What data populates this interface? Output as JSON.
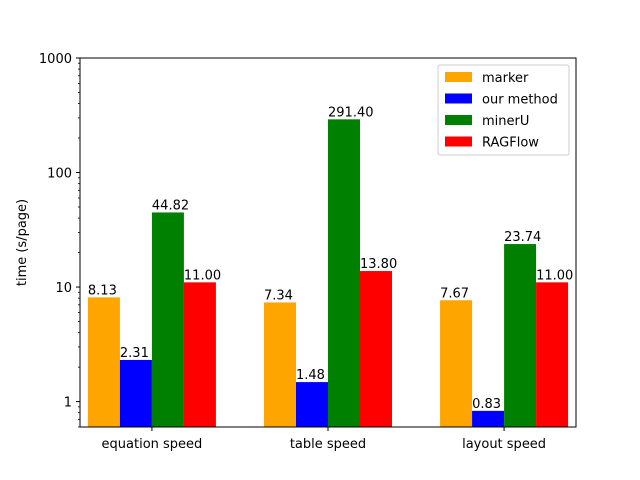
{
  "chart_data": {
    "type": "bar",
    "title": "",
    "xlabel": "",
    "ylabel": "time (s/page)",
    "yscale": "log",
    "ylim": [
      0.6,
      1000
    ],
    "yticks": [
      1,
      10,
      100,
      1000
    ],
    "ytick_labels": [
      "1",
      "10",
      "100",
      "1000"
    ],
    "categories": [
      "equation speed",
      "table speed",
      "layout speed"
    ],
    "series": [
      {
        "name": "marker",
        "color": "#ffa500",
        "values": [
          8.13,
          7.34,
          7.67
        ],
        "labels": [
          "8.13",
          "7.34",
          "7.67"
        ]
      },
      {
        "name": "our method",
        "color": "#0000ff",
        "values": [
          2.31,
          1.48,
          0.83
        ],
        "labels": [
          "2.31",
          "1.48",
          "0.83"
        ]
      },
      {
        "name": "minerU",
        "color": "#008000",
        "values": [
          44.82,
          291.4,
          23.74
        ],
        "labels": [
          "44.82",
          "291.40",
          "23.74"
        ]
      },
      {
        "name": "RAGFlow",
        "color": "#ff0000",
        "values": [
          11.0,
          13.8,
          11.0
        ],
        "labels": [
          "11.00",
          "13.80",
          "11.00"
        ]
      }
    ],
    "legend_position": "top-right",
    "grid": false
  }
}
